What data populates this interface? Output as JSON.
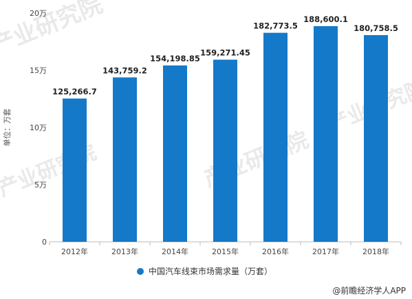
{
  "chart_data": {
    "type": "bar",
    "categories": [
      "2012年",
      "2013年",
      "2014年",
      "2015年",
      "2016年",
      "2017年",
      "2018年"
    ],
    "series": [
      {
        "name": "中国汽车线束市场需求量（万套）",
        "values": [
          125266.7,
          143759.2,
          154198.85,
          159271.45,
          182773.5,
          188600.1,
          180758.5
        ],
        "data_labels": [
          "125,266.7",
          "143,759.2",
          "154,198.85",
          "159,271.45",
          "182,773.5",
          "188,600.1",
          "180,758.5"
        ],
        "color": "#1479c9"
      }
    ],
    "ylabel": "单位：万套",
    "ylim": [
      0,
      200000
    ],
    "yticks": [
      0,
      50000,
      100000,
      150000,
      200000
    ],
    "ytick_labels": [
      "0",
      "5万",
      "10万",
      "15万",
      "20万"
    ],
    "grid": false,
    "legend": "bottom"
  },
  "credit": "@前瞻经济学人APP",
  "watermark": "产业研究院"
}
